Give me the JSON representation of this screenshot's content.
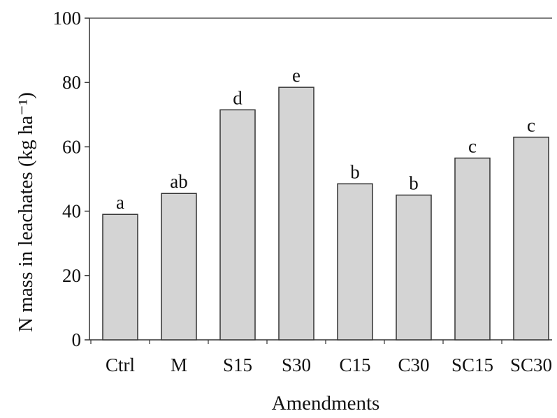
{
  "chart_data": {
    "type": "bar",
    "categories": [
      "Ctrl",
      "M",
      "S15",
      "S30",
      "C15",
      "C30",
      "SC15",
      "SC30"
    ],
    "values": [
      39,
      45.5,
      71.5,
      78.5,
      48.5,
      45,
      56.5,
      63
    ],
    "bar_labels": [
      "a",
      "ab",
      "d",
      "e",
      "b",
      "b",
      "c",
      "c"
    ],
    "xlabel": "Amendments",
    "ylabel": "N mass in leachates (kg ha⁻¹)",
    "ylim": [
      0,
      100
    ],
    "yticks": [
      0,
      20,
      40,
      60,
      80,
      100
    ],
    "grid": false,
    "legend": "none",
    "colors": {
      "bar_fill": "#d4d4d4",
      "bar_stroke": "#333333",
      "axis": "#333333",
      "text": "#111111"
    }
  }
}
